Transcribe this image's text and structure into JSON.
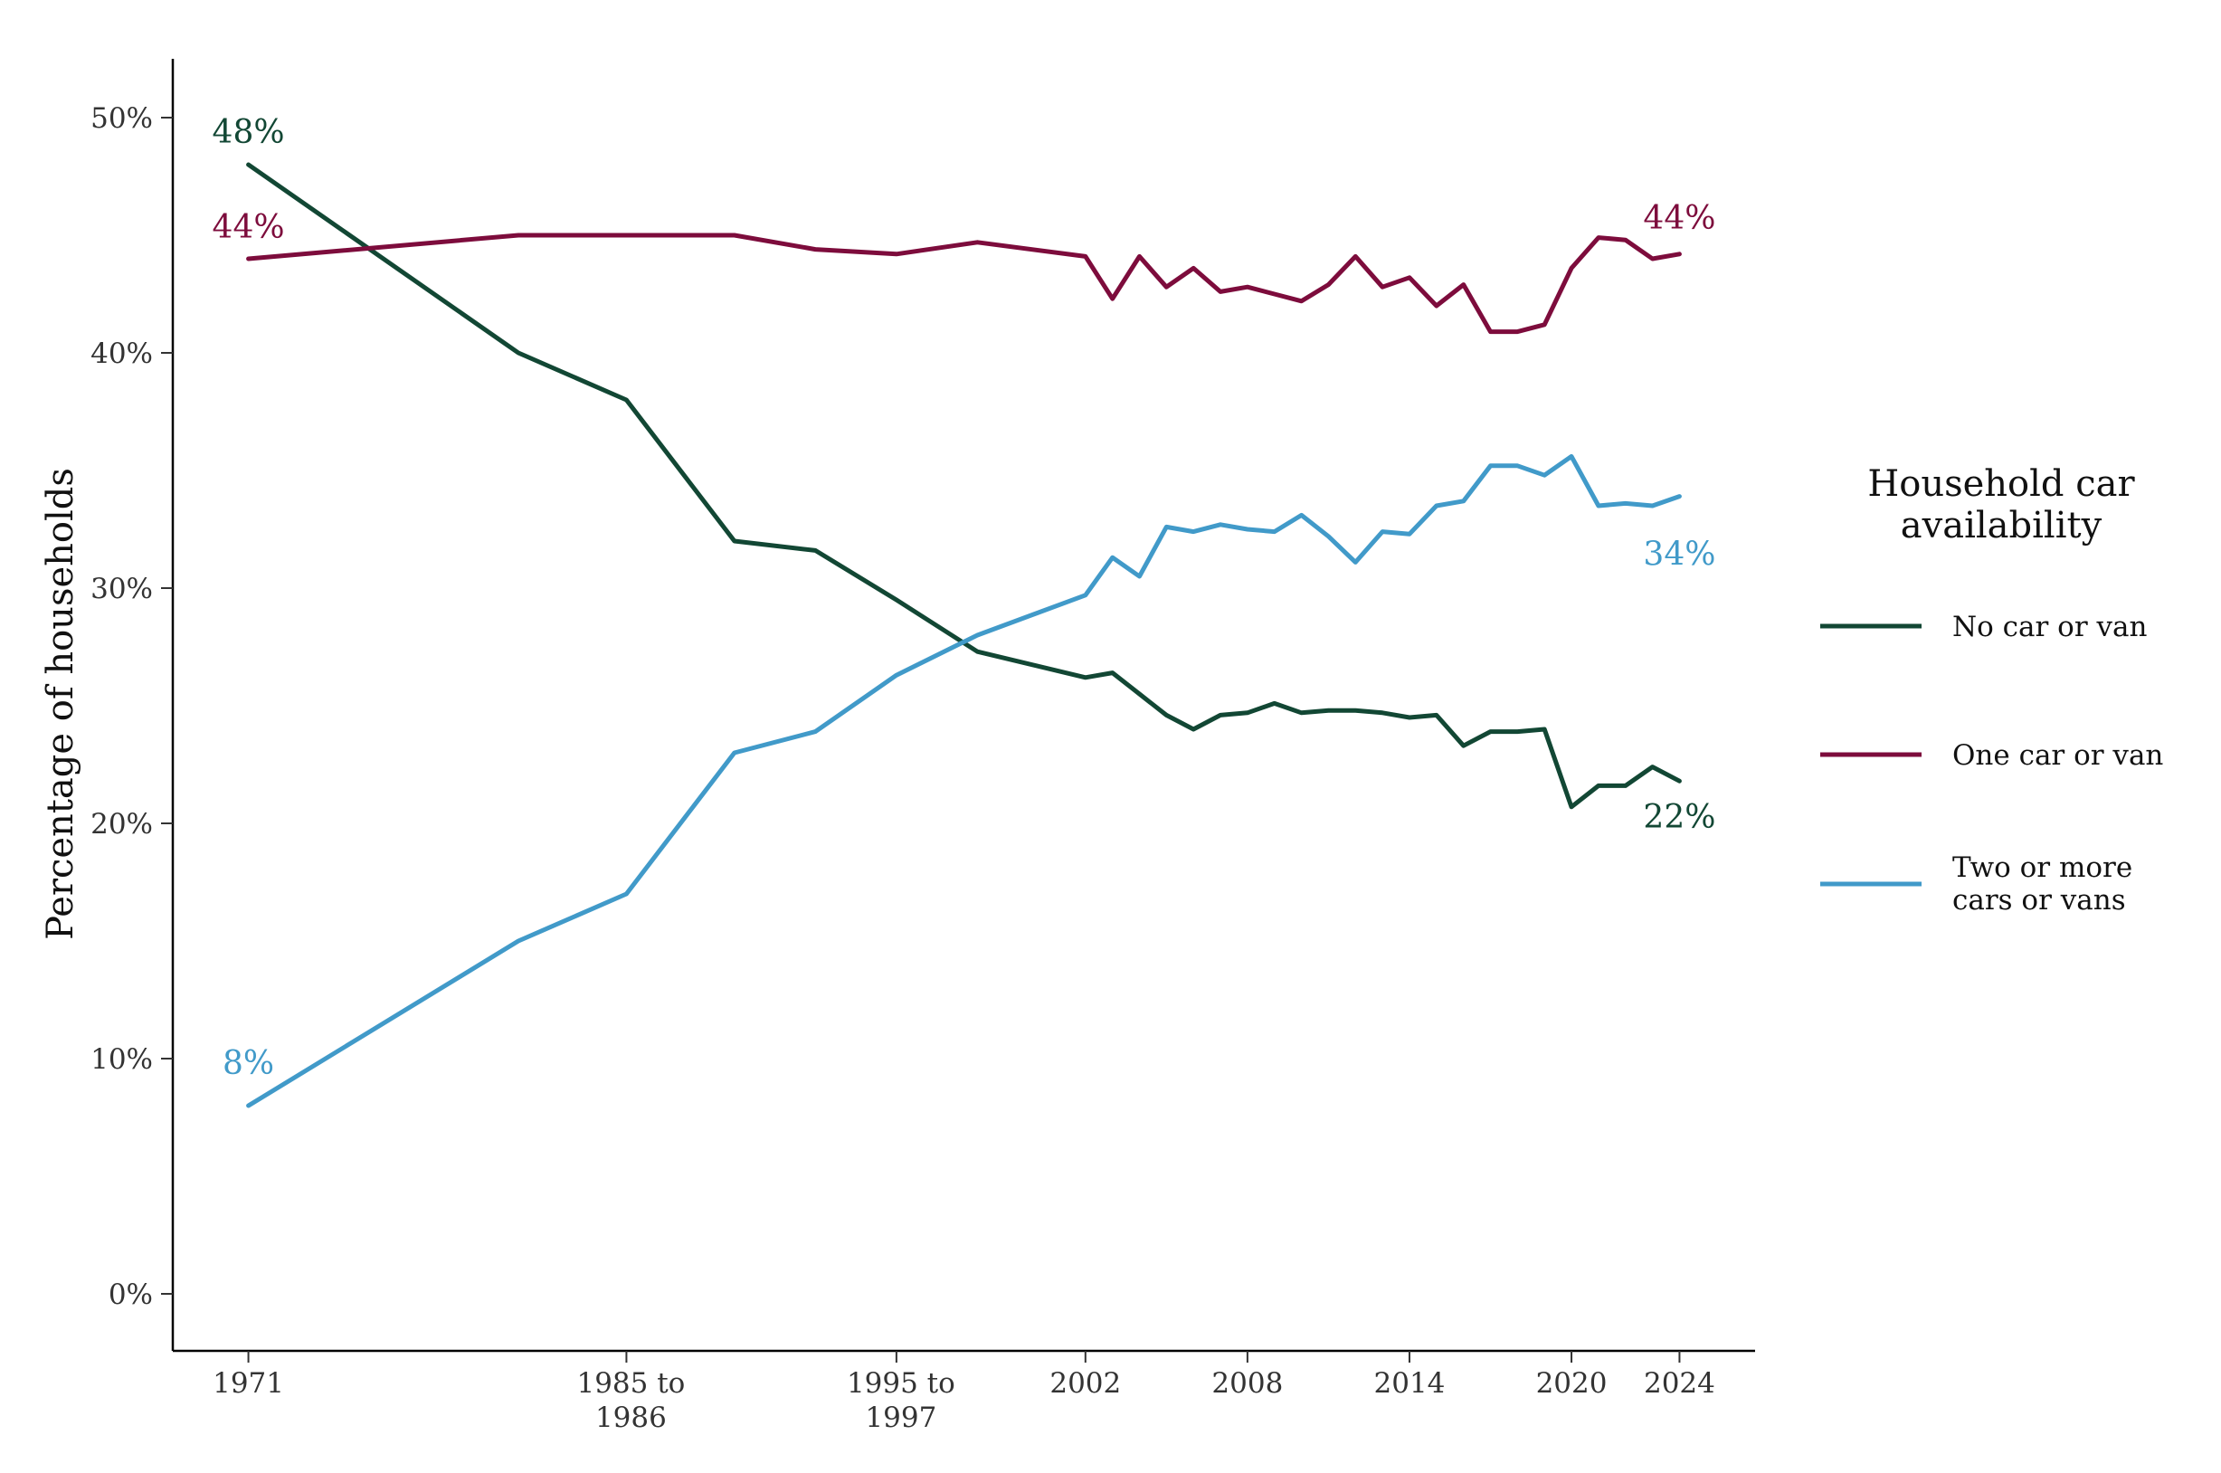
{
  "chart_data": {
    "type": "line",
    "title": "",
    "xlabel": "",
    "ylabel": "Percentage of households",
    "ylim": [
      0,
      50
    ],
    "yticks": [
      "0%",
      "10%",
      "20%",
      "30%",
      "40%",
      "50%"
    ],
    "yticks_values": [
      0,
      10,
      20,
      30,
      40,
      50
    ],
    "xlim": [
      1968.2,
      2026.8
    ],
    "xticks": [
      {
        "value": 1971,
        "lines": [
          "1971"
        ]
      },
      {
        "value": 1985,
        "lines": [
          "1985 to",
          "1986"
        ]
      },
      {
        "value": 1995,
        "lines": [
          "1995 to",
          "1997"
        ]
      },
      {
        "value": 2002,
        "lines": [
          "2002"
        ]
      },
      {
        "value": 2008,
        "lines": [
          "2008"
        ]
      },
      {
        "value": 2014,
        "lines": [
          "2014"
        ]
      },
      {
        "value": 2020,
        "lines": [
          "2020"
        ]
      },
      {
        "value": 2024,
        "lines": [
          "2024"
        ]
      }
    ],
    "grid": false,
    "legend": {
      "title_lines": [
        "Household car",
        "availability"
      ],
      "position": "right"
    },
    "series": [
      {
        "name_lines": [
          "No car or van"
        ],
        "color": "#124734",
        "x": [
          1971,
          1981,
          1985,
          1989,
          1992,
          1995,
          1998,
          2002,
          2003,
          2004,
          2005,
          2006,
          2007,
          2008,
          2009,
          2010,
          2011,
          2012,
          2013,
          2014,
          2015,
          2016,
          2017,
          2018,
          2019,
          2020,
          2021,
          2022,
          2023,
          2024
        ],
        "y": [
          48,
          40,
          38,
          32,
          31.6,
          29.5,
          27.3,
          26.2,
          26.4,
          25.5,
          24.6,
          24.0,
          24.6,
          24.7,
          25.1,
          24.7,
          24.8,
          24.8,
          24.7,
          24.5,
          24.6,
          23.3,
          23.9,
          23.9,
          24.0,
          20.7,
          21.6,
          21.6,
          22.4,
          21.8
        ],
        "start_label": "48%",
        "end_label": "22%"
      },
      {
        "name_lines": [
          "One car or van"
        ],
        "color": "#7d0c3c",
        "x": [
          1971,
          1981,
          1985,
          1989,
          1992,
          1995,
          1998,
          2002,
          2003,
          2004,
          2005,
          2006,
          2007,
          2008,
          2009,
          2010,
          2011,
          2012,
          2013,
          2014,
          2015,
          2016,
          2017,
          2018,
          2019,
          2020,
          2021,
          2022,
          2023,
          2024
        ],
        "y": [
          44,
          45,
          45,
          45,
          44.4,
          44.2,
          44.7,
          44.1,
          42.3,
          44.1,
          42.8,
          43.6,
          42.6,
          42.8,
          42.5,
          42.2,
          42.9,
          44.1,
          42.8,
          43.2,
          42.0,
          42.9,
          40.9,
          40.9,
          41.2,
          43.6,
          44.9,
          44.8,
          44.0,
          44.2
        ],
        "start_label": "44%",
        "end_label": "44%"
      },
      {
        "name_lines": [
          "Two or more",
          "cars or vans"
        ],
        "color": "#419ac9",
        "x": [
          1971,
          1981,
          1985,
          1989,
          1992,
          1995,
          1998,
          2002,
          2003,
          2004,
          2005,
          2006,
          2007,
          2008,
          2009,
          2010,
          2011,
          2012,
          2013,
          2014,
          2015,
          2016,
          2017,
          2018,
          2019,
          2020,
          2021,
          2022,
          2023,
          2024
        ],
        "y": [
          8,
          15,
          17,
          23,
          23.9,
          26.3,
          28.0,
          29.7,
          31.3,
          30.5,
          32.6,
          32.4,
          32.7,
          32.5,
          32.4,
          33.1,
          32.2,
          31.1,
          32.4,
          32.3,
          33.5,
          33.7,
          35.2,
          35.2,
          34.8,
          35.6,
          33.5,
          33.6,
          33.5,
          33.9
        ],
        "start_label": "8%",
        "end_label": "34%"
      }
    ]
  }
}
